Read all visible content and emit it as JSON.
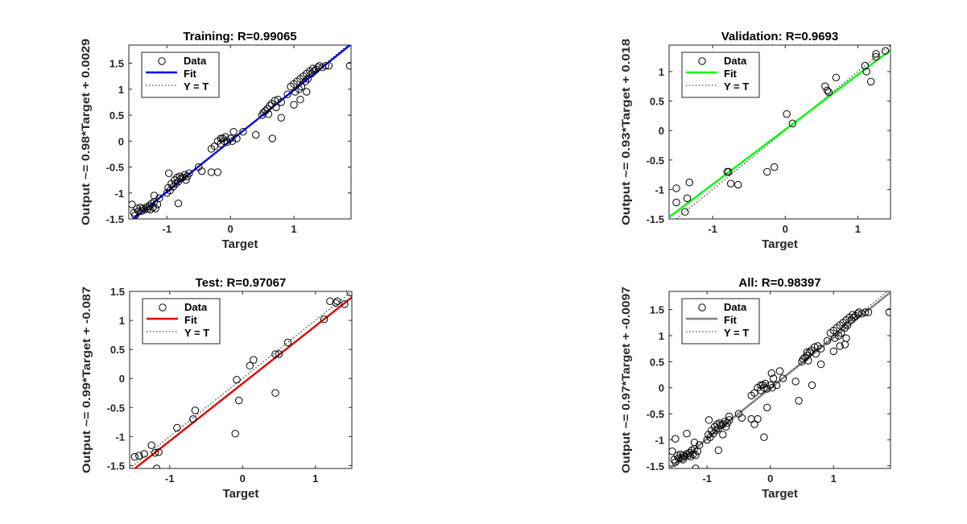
{
  "chart_data": [
    {
      "type": "scatter",
      "title": "Training: R=0.99065",
      "xlabel": "Target",
      "ylabel": "Output ~= 0.98*Target + 0.0029",
      "xlim": [
        -1.6,
        1.9
      ],
      "ylim": [
        -1.5,
        1.85
      ],
      "xticks": [
        -1,
        0,
        1
      ],
      "yticks": [
        -1.5,
        -1,
        -0.5,
        0,
        0.5,
        1,
        1.5
      ],
      "xtick_labels": [
        "-1",
        "0",
        "1"
      ],
      "ytick_labels": [
        "-1.5",
        "-1",
        "-0.5",
        "0",
        "0.5",
        "1",
        "1.5"
      ],
      "fit": {
        "slope": 0.98,
        "intercept": 0.0029,
        "color": "#0000ff"
      },
      "legend": {
        "position": "top-left",
        "entries": [
          "Data",
          "Fit",
          "Y = T"
        ]
      },
      "points": [
        [
          -1.52,
          -1.38
        ],
        [
          -1.5,
          -1.43
        ],
        [
          -1.47,
          -1.3
        ],
        [
          -1.45,
          -1.35
        ],
        [
          -1.42,
          -1.28
        ],
        [
          -1.4,
          -1.35
        ],
        [
          -1.38,
          -1.3
        ],
        [
          -1.35,
          -1.32
        ],
        [
          -1.32,
          -1.27
        ],
        [
          -1.3,
          -1.3
        ],
        [
          -1.28,
          -1.25
        ],
        [
          -1.26,
          -1.32
        ],
        [
          -1.24,
          -1.2
        ],
        [
          -1.22,
          -1.28
        ],
        [
          -1.2,
          -1.17
        ],
        [
          -1.18,
          -1.3
        ],
        [
          -1.15,
          -1.22
        ],
        [
          -1.12,
          -1.1
        ],
        [
          -1.55,
          -1.22
        ],
        [
          -1.2,
          -1.05
        ],
        [
          -1.0,
          -1.0
        ],
        [
          -0.98,
          -0.9
        ],
        [
          -0.95,
          -0.95
        ],
        [
          -0.93,
          -0.82
        ],
        [
          -0.9,
          -0.88
        ],
        [
          -0.88,
          -0.75
        ],
        [
          -0.86,
          -0.82
        ],
        [
          -0.84,
          -0.7
        ],
        [
          -0.82,
          -0.78
        ],
        [
          -0.8,
          -0.68
        ],
        [
          -0.78,
          -0.72
        ],
        [
          -0.75,
          -0.7
        ],
        [
          -0.72,
          -0.65
        ],
        [
          -0.7,
          -0.75
        ],
        [
          -0.68,
          -0.68
        ],
        [
          -0.65,
          -0.62
        ],
        [
          -0.97,
          -0.62
        ],
        [
          -0.82,
          -1.2
        ],
        [
          -0.5,
          -0.5
        ],
        [
          -0.45,
          -0.58
        ],
        [
          -0.3,
          -0.6
        ],
        [
          -0.2,
          -0.6
        ],
        [
          -0.3,
          -0.15
        ],
        [
          -0.25,
          -0.1
        ],
        [
          -0.2,
          0.0
        ],
        [
          -0.15,
          -0.05
        ],
        [
          -0.12,
          0.05
        ],
        [
          -0.1,
          0.0
        ],
        [
          -0.08,
          0.08
        ],
        [
          -0.05,
          -0.02
        ],
        [
          0.0,
          0.05
        ],
        [
          0.03,
          0.0
        ],
        [
          0.05,
          0.18
        ],
        [
          0.1,
          0.05
        ],
        [
          -0.15,
          0.05
        ],
        [
          0.2,
          0.18
        ],
        [
          0.4,
          0.12
        ],
        [
          0.5,
          0.5
        ],
        [
          0.52,
          0.55
        ],
        [
          0.55,
          0.58
        ],
        [
          0.58,
          0.62
        ],
        [
          0.6,
          0.52
        ],
        [
          0.62,
          0.68
        ],
        [
          0.65,
          0.72
        ],
        [
          0.7,
          0.78
        ],
        [
          0.72,
          0.65
        ],
        [
          0.75,
          0.8
        ],
        [
          0.8,
          0.75
        ],
        [
          0.66,
          0.05
        ],
        [
          0.8,
          0.45
        ],
        [
          0.9,
          0.9
        ],
        [
          0.95,
          1.05
        ],
        [
          1.0,
          1.1
        ],
        [
          1.02,
          0.95
        ],
        [
          1.05,
          1.15
        ],
        [
          1.08,
          1.0
        ],
        [
          1.1,
          1.2
        ],
        [
          1.12,
          1.05
        ],
        [
          1.15,
          1.25
        ],
        [
          1.18,
          1.15
        ],
        [
          1.2,
          1.3
        ],
        [
          1.22,
          1.2
        ],
        [
          1.25,
          1.35
        ],
        [
          1.28,
          1.3
        ],
        [
          1.3,
          1.4
        ],
        [
          1.32,
          1.35
        ],
        [
          1.35,
          1.38
        ],
        [
          1.38,
          1.42
        ],
        [
          1.4,
          1.45
        ],
        [
          1.45,
          1.42
        ],
        [
          1.5,
          1.45
        ],
        [
          1.55,
          1.45
        ],
        [
          1.1,
          0.8
        ],
        [
          1.2,
          0.95
        ],
        [
          1.0,
          0.7
        ],
        [
          1.88,
          1.45
        ]
      ]
    },
    {
      "type": "scatter",
      "title": "Validation: R=0.9693",
      "xlabel": "Target",
      "ylabel": "Output ~= 0.93*Target + 0.018",
      "xlim": [
        -1.6,
        1.45
      ],
      "ylim": [
        -1.5,
        1.45
      ],
      "xticks": [
        -1,
        0,
        1
      ],
      "yticks": [
        -1.5,
        -1,
        -0.5,
        0,
        0.5,
        1
      ],
      "xtick_labels": [
        "-1",
        "0",
        "1"
      ],
      "ytick_labels": [
        "-1.5",
        "-1",
        "-0.5",
        "0",
        "0.5",
        "1"
      ],
      "fit": {
        "slope": 0.93,
        "intercept": 0.018,
        "color": "#00ff00"
      },
      "legend": {
        "position": "top-left",
        "entries": [
          "Data",
          "Fit",
          "Y = T"
        ]
      },
      "points": [
        [
          -1.5,
          -0.98
        ],
        [
          -1.5,
          -1.22
        ],
        [
          -1.38,
          -1.38
        ],
        [
          -1.35,
          -1.15
        ],
        [
          -1.32,
          -0.88
        ],
        [
          -0.8,
          -0.7
        ],
        [
          -0.78,
          -0.7
        ],
        [
          -0.75,
          -0.9
        ],
        [
          -0.65,
          -0.92
        ],
        [
          -0.25,
          -0.7
        ],
        [
          -0.15,
          -0.62
        ],
        [
          0.02,
          0.28
        ],
        [
          0.1,
          0.12
        ],
        [
          0.55,
          0.75
        ],
        [
          0.58,
          0.68
        ],
        [
          0.6,
          0.65
        ],
        [
          0.7,
          0.9
        ],
        [
          1.1,
          1.1
        ],
        [
          1.12,
          1.0
        ],
        [
          1.18,
          0.83
        ],
        [
          1.25,
          1.3
        ],
        [
          1.25,
          1.25
        ],
        [
          1.38,
          1.35
        ]
      ]
    },
    {
      "type": "scatter",
      "title": "Test: R=0.97067",
      "xlabel": "Target",
      "ylabel": "Output ~= 0.99*Target + -0.087",
      "xlim": [
        -1.55,
        1.5
      ],
      "ylim": [
        -1.55,
        1.5
      ],
      "xticks": [
        -1,
        0,
        1
      ],
      "yticks": [
        -1.5,
        -1,
        -0.5,
        0,
        0.5,
        1,
        1.5
      ],
      "xtick_labels": [
        "-1",
        "0",
        "1"
      ],
      "ytick_labels": [
        "-1.5",
        "-1",
        "-0.5",
        "0",
        "0.5",
        "1",
        "1.5"
      ],
      "fit": {
        "slope": 0.99,
        "intercept": -0.087,
        "color": "#e00000"
      },
      "legend": {
        "position": "top-left",
        "entries": [
          "Data",
          "Fit",
          "Y = T"
        ]
      },
      "points": [
        [
          -1.48,
          -1.35
        ],
        [
          -1.42,
          -1.33
        ],
        [
          -1.35,
          -1.3
        ],
        [
          -1.25,
          -1.15
        ],
        [
          -1.2,
          -1.28
        ],
        [
          -1.15,
          -1.27
        ],
        [
          -1.18,
          -1.55
        ],
        [
          -0.9,
          -0.85
        ],
        [
          -0.68,
          -0.7
        ],
        [
          -0.65,
          -0.55
        ],
        [
          -0.1,
          -0.95
        ],
        [
          -0.08,
          -0.02
        ],
        [
          -0.05,
          -0.38
        ],
        [
          0.1,
          0.22
        ],
        [
          0.15,
          0.32
        ],
        [
          0.45,
          -0.25
        ],
        [
          0.45,
          0.42
        ],
        [
          0.5,
          0.42
        ],
        [
          0.62,
          0.62
        ],
        [
          1.12,
          1.02
        ],
        [
          1.2,
          1.33
        ],
        [
          1.28,
          1.3
        ],
        [
          1.3,
          1.33
        ],
        [
          1.4,
          1.28
        ],
        [
          1.48,
          1.48
        ]
      ]
    },
    {
      "type": "scatter",
      "title": "All: R=0.98397",
      "xlabel": "Target",
      "ylabel": "Output ~= 0.97*Target + -0.0097",
      "xlim": [
        -1.6,
        1.9
      ],
      "ylim": [
        -1.55,
        1.85
      ],
      "xticks": [
        -1,
        0,
        1
      ],
      "yticks": [
        -1.5,
        -1,
        -0.5,
        0,
        0.5,
        1,
        1.5
      ],
      "xtick_labels": [
        "-1",
        "0",
        "1"
      ],
      "ytick_labels": [
        "-1.5",
        "-1",
        "-0.5",
        "0",
        "0.5",
        "1",
        "1.5"
      ],
      "fit": {
        "slope": 0.97,
        "intercept": -0.0097,
        "color": "#7f7f7f"
      },
      "legend": {
        "position": "top-left",
        "entries": [
          "Data",
          "Fit",
          "Y = T"
        ]
      },
      "points": [
        [
          -1.52,
          -1.38
        ],
        [
          -1.5,
          -1.43
        ],
        [
          -1.47,
          -1.3
        ],
        [
          -1.45,
          -1.35
        ],
        [
          -1.42,
          -1.28
        ],
        [
          -1.4,
          -1.35
        ],
        [
          -1.38,
          -1.3
        ],
        [
          -1.35,
          -1.32
        ],
        [
          -1.32,
          -1.27
        ],
        [
          -1.3,
          -1.3
        ],
        [
          -1.28,
          -1.25
        ],
        [
          -1.26,
          -1.32
        ],
        [
          -1.24,
          -1.2
        ],
        [
          -1.22,
          -1.28
        ],
        [
          -1.2,
          -1.17
        ],
        [
          -1.18,
          -1.3
        ],
        [
          -1.15,
          -1.22
        ],
        [
          -1.12,
          -1.1
        ],
        [
          -1.55,
          -1.22
        ],
        [
          -1.2,
          -1.05
        ],
        [
          -1.0,
          -1.0
        ],
        [
          -0.98,
          -0.9
        ],
        [
          -0.95,
          -0.95
        ],
        [
          -0.93,
          -0.82
        ],
        [
          -0.9,
          -0.88
        ],
        [
          -0.88,
          -0.75
        ],
        [
          -0.86,
          -0.82
        ],
        [
          -0.84,
          -0.7
        ],
        [
          -0.82,
          -0.78
        ],
        [
          -0.8,
          -0.68
        ],
        [
          -0.78,
          -0.72
        ],
        [
          -0.75,
          -0.7
        ],
        [
          -0.72,
          -0.65
        ],
        [
          -0.7,
          -0.75
        ],
        [
          -0.68,
          -0.68
        ],
        [
          -0.65,
          -0.62
        ],
        [
          -0.97,
          -0.62
        ],
        [
          -0.82,
          -1.2
        ],
        [
          -0.5,
          -0.5
        ],
        [
          -0.45,
          -0.58
        ],
        [
          -0.3,
          -0.6
        ],
        [
          -0.2,
          -0.6
        ],
        [
          -0.3,
          -0.15
        ],
        [
          -0.25,
          -0.1
        ],
        [
          -0.2,
          0.0
        ],
        [
          -0.15,
          -0.05
        ],
        [
          -0.12,
          0.05
        ],
        [
          -0.1,
          0.0
        ],
        [
          -0.08,
          0.08
        ],
        [
          -0.05,
          -0.02
        ],
        [
          0.0,
          0.05
        ],
        [
          0.03,
          0.0
        ],
        [
          0.05,
          0.18
        ],
        [
          0.1,
          0.05
        ],
        [
          -0.15,
          0.05
        ],
        [
          0.2,
          0.18
        ],
        [
          0.4,
          0.12
        ],
        [
          0.5,
          0.5
        ],
        [
          0.52,
          0.55
        ],
        [
          0.55,
          0.58
        ],
        [
          0.58,
          0.62
        ],
        [
          0.6,
          0.52
        ],
        [
          0.62,
          0.68
        ],
        [
          0.65,
          0.72
        ],
        [
          0.7,
          0.78
        ],
        [
          0.72,
          0.65
        ],
        [
          0.75,
          0.8
        ],
        [
          0.8,
          0.75
        ],
        [
          0.66,
          0.05
        ],
        [
          0.8,
          0.45
        ],
        [
          0.9,
          0.9
        ],
        [
          0.95,
          1.05
        ],
        [
          1.0,
          1.1
        ],
        [
          1.02,
          0.95
        ],
        [
          1.05,
          1.15
        ],
        [
          1.08,
          1.0
        ],
        [
          1.1,
          1.2
        ],
        [
          1.12,
          1.05
        ],
        [
          1.15,
          1.25
        ],
        [
          1.18,
          1.15
        ],
        [
          1.2,
          1.3
        ],
        [
          1.22,
          1.2
        ],
        [
          1.25,
          1.35
        ],
        [
          1.28,
          1.3
        ],
        [
          1.3,
          1.4
        ],
        [
          1.32,
          1.35
        ],
        [
          1.35,
          1.38
        ],
        [
          1.38,
          1.42
        ],
        [
          1.4,
          1.45
        ],
        [
          1.45,
          1.42
        ],
        [
          1.5,
          1.45
        ],
        [
          1.55,
          1.45
        ],
        [
          1.1,
          0.8
        ],
        [
          1.2,
          0.95
        ],
        [
          1.0,
          0.7
        ],
        [
          1.88,
          1.45
        ],
        [
          -1.5,
          -0.98
        ],
        [
          -1.38,
          -1.38
        ],
        [
          -1.32,
          -0.88
        ],
        [
          -0.75,
          -0.9
        ],
        [
          -0.25,
          -0.7
        ],
        [
          0.02,
          0.28
        ],
        [
          0.58,
          0.68
        ],
        [
          1.18,
          0.83
        ],
        [
          -1.18,
          -1.55
        ],
        [
          -0.1,
          -0.95
        ],
        [
          -0.05,
          -0.38
        ],
        [
          0.45,
          -0.25
        ],
        [
          0.15,
          0.32
        ],
        [
          -0.65,
          -0.55
        ]
      ]
    }
  ]
}
